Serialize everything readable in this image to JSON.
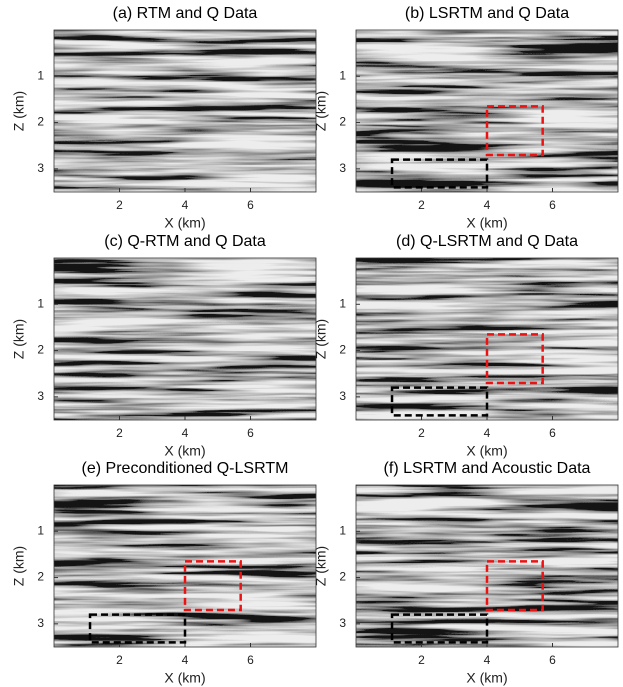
{
  "chart_data": [
    {
      "type": "image",
      "title": "(a) RTM and Q Data",
      "x_label": "X (km)",
      "y_label": "Z (km)",
      "xlim": [
        0,
        8
      ],
      "ylim": [
        0,
        3.5
      ],
      "y_reversed": true,
      "xticks": [
        2,
        4,
        6
      ],
      "yticks": [
        1,
        2,
        3
      ],
      "boxes": []
    },
    {
      "type": "image",
      "title": "(b) LSRTM and Q Data",
      "x_label": "X (km)",
      "y_label": "Z (km)",
      "xlim": [
        0,
        8
      ],
      "ylim": [
        0,
        3.5
      ],
      "y_reversed": true,
      "xticks": [
        2,
        4,
        6
      ],
      "yticks": [
        1,
        2,
        3
      ],
      "boxes": [
        {
          "color": "#ee1111",
          "xlim": [
            4,
            5.7
          ],
          "ylim": [
            1.65,
            2.7
          ]
        },
        {
          "color": "#000000",
          "xlim": [
            1.1,
            4
          ],
          "ylim": [
            2.8,
            3.4
          ]
        }
      ]
    },
    {
      "type": "image",
      "title": "(c) Q-RTM and Q Data",
      "x_label": "X (km)",
      "y_label": "Z (km)",
      "xlim": [
        0,
        8
      ],
      "ylim": [
        0,
        3.5
      ],
      "y_reversed": true,
      "xticks": [
        2,
        4,
        6
      ],
      "yticks": [
        1,
        2,
        3
      ],
      "boxes": []
    },
    {
      "type": "image",
      "title": "(d) Q-LSRTM and Q Data",
      "x_label": "X (km)",
      "y_label": "Z (km)",
      "xlim": [
        0,
        8
      ],
      "ylim": [
        0,
        3.5
      ],
      "y_reversed": true,
      "xticks": [
        2,
        4,
        6
      ],
      "yticks": [
        1,
        2,
        3
      ],
      "boxes": [
        {
          "color": "#ee1111",
          "xlim": [
            4,
            5.7
          ],
          "ylim": [
            1.65,
            2.7
          ]
        },
        {
          "color": "#000000",
          "xlim": [
            1.1,
            4
          ],
          "ylim": [
            2.8,
            3.4
          ]
        }
      ]
    },
    {
      "type": "image",
      "title": "(e) Preconditioned Q-LSRTM",
      "x_label": "X (km)",
      "y_label": "Z (km)",
      "xlim": [
        0,
        8
      ],
      "ylim": [
        0,
        3.5
      ],
      "y_reversed": true,
      "xticks": [
        2,
        4,
        6
      ],
      "yticks": [
        1,
        2,
        3
      ],
      "boxes": [
        {
          "color": "#ee1111",
          "xlim": [
            4,
            5.7
          ],
          "ylim": [
            1.65,
            2.7
          ]
        },
        {
          "color": "#000000",
          "xlim": [
            1.1,
            4
          ],
          "ylim": [
            2.8,
            3.4
          ]
        }
      ]
    },
    {
      "type": "image",
      "title": "(f) LSRTM and Acoustic Data",
      "x_label": "X (km)",
      "y_label": "Z (km)",
      "xlim": [
        0,
        8
      ],
      "ylim": [
        0,
        3.5
      ],
      "y_reversed": true,
      "xticks": [
        2,
        4,
        6
      ],
      "yticks": [
        1,
        2,
        3
      ],
      "boxes": [
        {
          "color": "#ee1111",
          "xlim": [
            4,
            5.7
          ],
          "ylim": [
            1.65,
            2.7
          ]
        },
        {
          "color": "#000000",
          "xlim": [
            1.1,
            4
          ],
          "ylim": [
            2.8,
            3.4
          ]
        }
      ]
    }
  ]
}
